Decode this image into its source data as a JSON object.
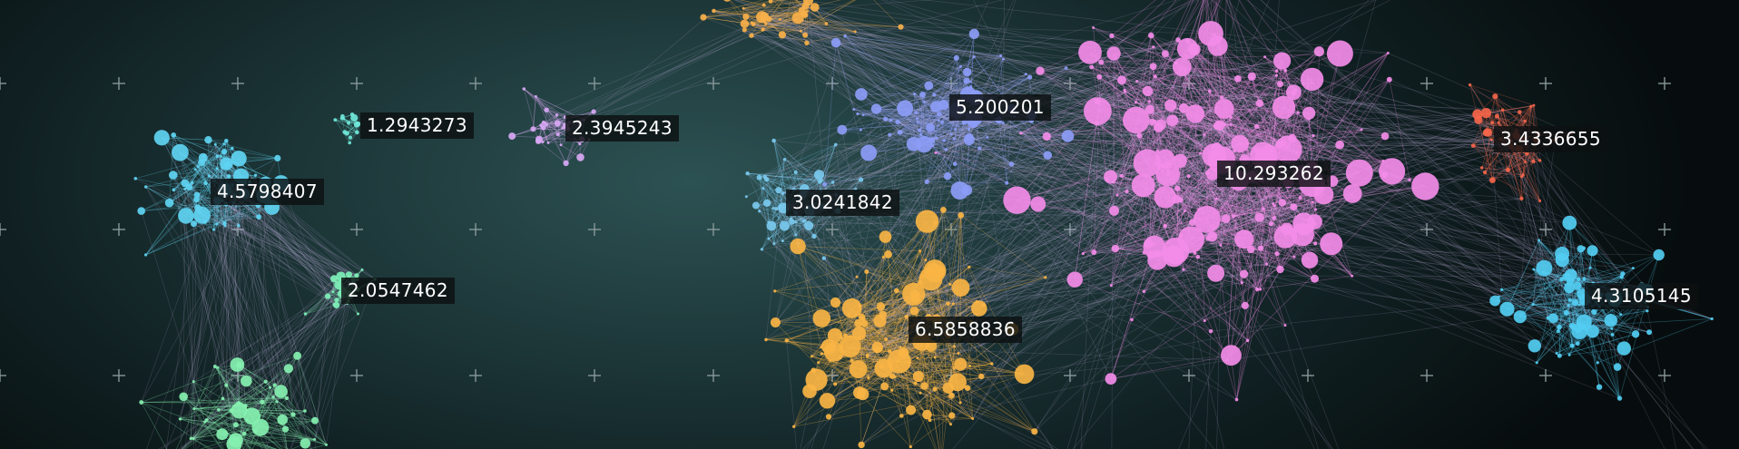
{
  "graph": {
    "clusters": [
      {
        "id": "c-light-blue-left",
        "score": "4.5798407",
        "color": "#5fd4f2",
        "size": "large"
      },
      {
        "id": "c-teal-small",
        "score": "1.2943273",
        "color": "#6fe6d8",
        "size": "tiny"
      },
      {
        "id": "c-lavender",
        "score": "2.3945243",
        "color": "#d8a8f4",
        "size": "small"
      },
      {
        "id": "c-mint",
        "score": "2.0547462",
        "color": "#7ef0b8",
        "size": "small"
      },
      {
        "id": "c-green-bottom",
        "score": "",
        "color": "#86f0b0",
        "size": "medium"
      },
      {
        "id": "c-orange-top",
        "score": "",
        "color": "#f7b04a",
        "size": "small"
      },
      {
        "id": "c-periwinkle",
        "score": "5.200201",
        "color": "#8c9cf6",
        "size": "large"
      },
      {
        "id": "c-sky",
        "score": "3.0241842",
        "color": "#79c9ee",
        "size": "medium"
      },
      {
        "id": "c-orange-main",
        "score": "6.5858836",
        "color": "#f9b444",
        "size": "large"
      },
      {
        "id": "c-pink",
        "score": "10.293262",
        "color": "#f38ce8",
        "size": "huge"
      },
      {
        "id": "c-red",
        "score": "3.4336655",
        "color": "#f4654a",
        "size": "medium"
      },
      {
        "id": "c-cyan-right",
        "score": "4.3105145",
        "color": "#52cdf2",
        "size": "large"
      }
    ],
    "grid_color": "#8a9b9c",
    "edge_opacity": 0.18
  }
}
